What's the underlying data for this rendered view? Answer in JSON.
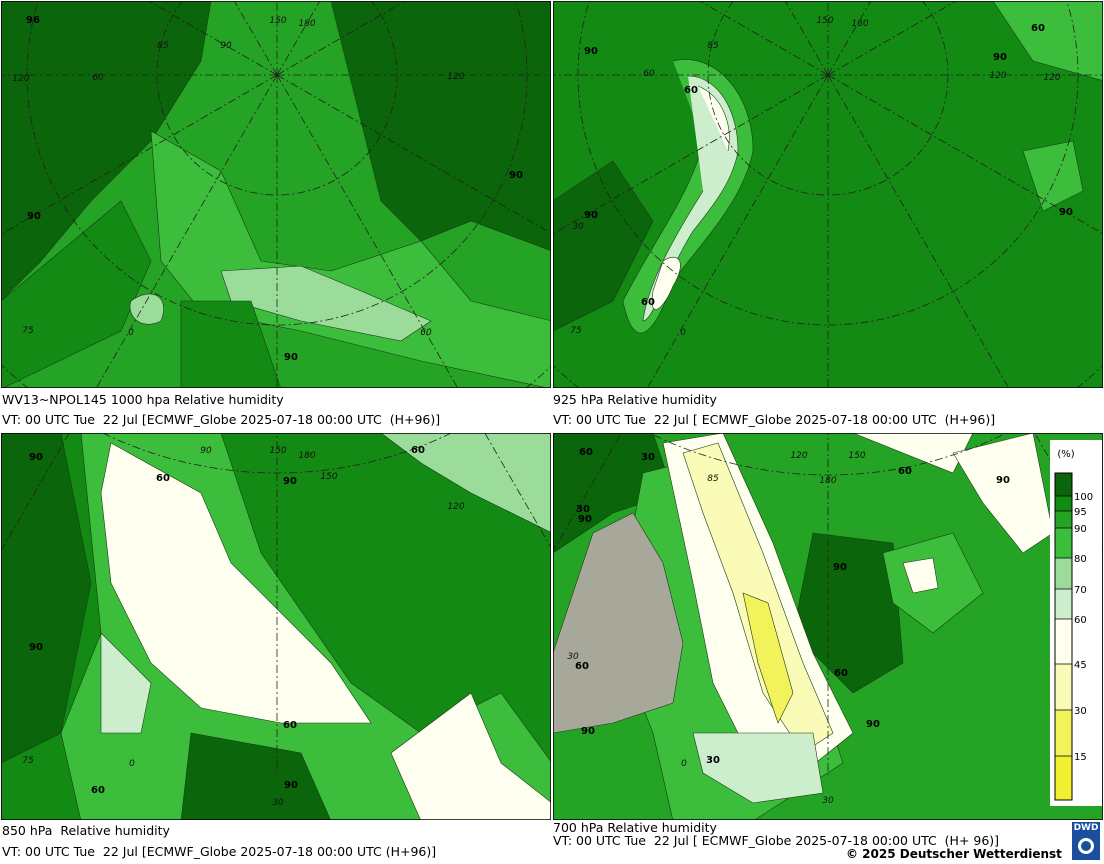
{
  "panels": [
    {
      "caption": "WV13~NPOL145 1000 hpa Relative humidity",
      "valid_time": "VT: 00 UTC Tue  22 Jul [ECMWF_Globe 2025-07-18 00:00 UTC  (H+96)]",
      "labels": [
        "96",
        "90",
        "90",
        "90",
        "150",
        "180",
        "120",
        "90",
        "85",
        "60",
        "75",
        "0",
        "60",
        "120"
      ]
    },
    {
      "caption": "925 hPa Relative humidity",
      "valid_time": "VT: 00 UTC Tue  22 Jul [ ECMWF_Globe 2025-07-18 00:00 UTC  (H+96)]",
      "labels": [
        "60",
        "90",
        "60",
        "90",
        "90",
        "90",
        "60",
        "150",
        "180",
        "120",
        "85",
        "60",
        "30",
        "75",
        "0",
        "120"
      ]
    },
    {
      "caption": "850 hPa  Relative humidity",
      "valid_time": "VT: 00 UTC Tue  22 Jul [ECMWF_Globe 2025-07-18 00:00 UTC (H+96)]",
      "labels": [
        "90",
        "60",
        "90",
        "90",
        "60",
        "90",
        "60",
        "60",
        "150",
        "180",
        "120",
        "90",
        "75",
        "0",
        "30",
        "150"
      ]
    },
    {
      "caption": "700 hPa Relative humidity",
      "valid_time": "VT: 00 UTC Tue  22 Jul [ ECMWF_Globe 2025-07-18 00:00 UTC  (H+ 96)]",
      "labels": [
        "60",
        "30",
        "90",
        "60",
        "30",
        "90",
        "90",
        "60",
        "90",
        "30",
        "60",
        "90",
        "120",
        "150",
        "180",
        "85",
        "30",
        "0",
        "30"
      ]
    }
  ],
  "colorbar": {
    "unit": "(%)",
    "levels": [
      "100",
      "95",
      "90",
      "80",
      "70",
      "60",
      "45",
      "30",
      "15"
    ]
  },
  "copyright": "© 2025 Deutscher Wetterdienst",
  "logo": "DWD"
}
